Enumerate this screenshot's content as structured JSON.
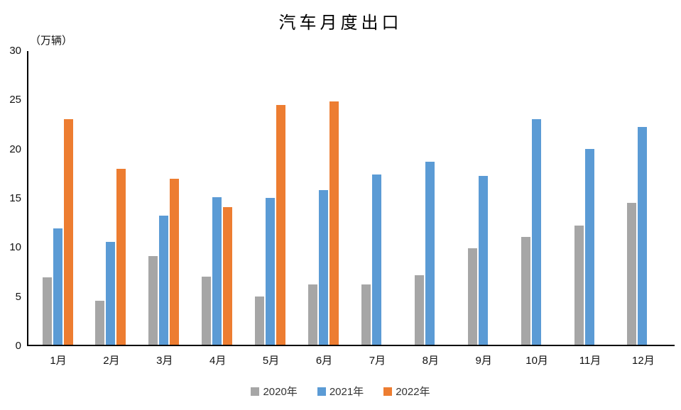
{
  "chart_data": {
    "type": "bar",
    "title": "汽车月度出口",
    "ylabel": "（万辆）",
    "categories": [
      "1月",
      "2月",
      "3月",
      "4月",
      "5月",
      "6月",
      "7月",
      "8月",
      "9月",
      "10月",
      "11月",
      "12月"
    ],
    "series": [
      {
        "name": "2020年",
        "color": "#A6A6A6",
        "values": [
          6.9,
          4.5,
          9.1,
          7.0,
          4.9,
          6.2,
          6.2,
          7.1,
          9.9,
          11.0,
          12.2,
          14.5
        ]
      },
      {
        "name": "2021年",
        "color": "#5B9BD5",
        "values": [
          11.9,
          10.5,
          13.2,
          15.1,
          15.0,
          15.8,
          17.4,
          18.7,
          17.3,
          23.1,
          20.0,
          22.3
        ]
      },
      {
        "name": "2022年",
        "color": "#ED7D31",
        "values": [
          23.1,
          18.0,
          17.0,
          14.1,
          24.5,
          24.9,
          null,
          null,
          null,
          null,
          null,
          null
        ]
      }
    ],
    "ylim": [
      0,
      30
    ],
    "yticks": [
      0,
      5,
      10,
      15,
      20,
      25,
      30
    ],
    "grid": false,
    "legend_position": "bottom"
  }
}
